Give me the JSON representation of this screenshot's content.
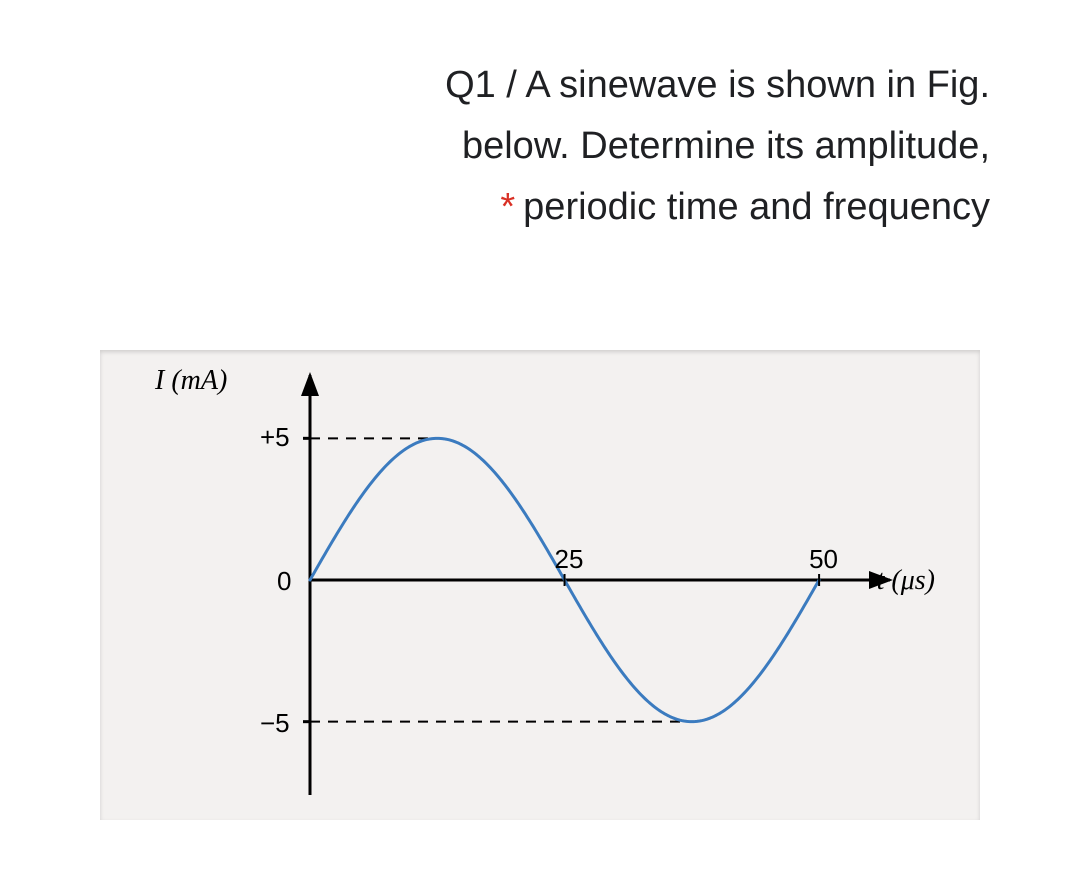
{
  "question": {
    "line1": "Q1 / A sinewave is shown in Fig.",
    "line2": "below. Determine its amplitude,",
    "line3": "periodic time and frequency",
    "required_marker": "*"
  },
  "figure": {
    "type": "line",
    "background_color": "#f3f1f0",
    "curve_color": "#3b7bbf",
    "curve_width": 3,
    "axis_color": "#000000",
    "axis_width": 3,
    "dash_color": "#000000",
    "dash_pattern": "10,8",
    "y_axis": {
      "label": "I (mA)",
      "ticks": [
        {
          "value": 5,
          "label": "+5"
        },
        {
          "value": 0,
          "label": "0"
        },
        {
          "value": -5,
          "label": "−5"
        }
      ],
      "range": [
        -6,
        6
      ]
    },
    "x_axis": {
      "label": "t (μs)",
      "ticks": [
        {
          "value": 25,
          "label": "25"
        },
        {
          "value": 50,
          "label": "50"
        }
      ],
      "range": [
        0,
        55
      ]
    },
    "wave": {
      "amplitude": 5,
      "period": 50,
      "phase_start": 0
    }
  }
}
